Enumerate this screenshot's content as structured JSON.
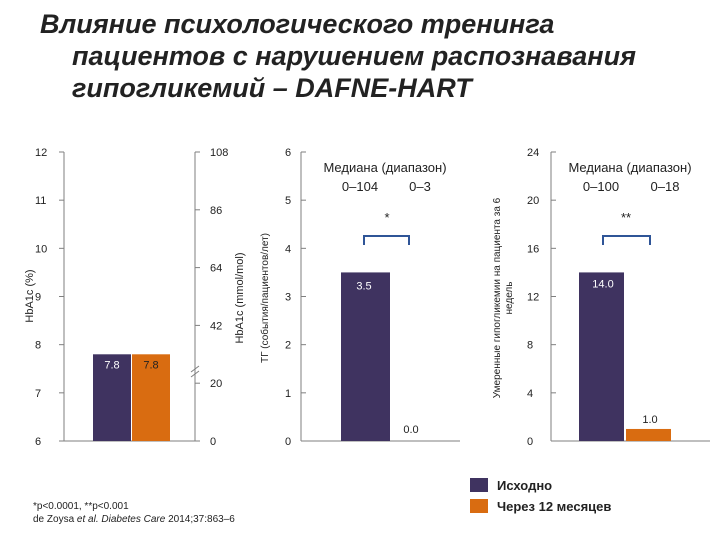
{
  "title": {
    "line1": "Влияние психологического тренинга",
    "line2": "пациентов с нарушением распознавания",
    "line3": "гипогликемий – DAFNE-HART"
  },
  "colors": {
    "baseline": "#3f3360",
    "month12": "#d96c11",
    "bracket": "#2f5597",
    "axis": "#7f7f7f"
  },
  "chart_data": [
    {
      "type": "bar",
      "left_axis": {
        "label": "HbA1c (%)",
        "ticks": [
          "6",
          "7",
          "8",
          "9",
          "10",
          "11",
          "12"
        ],
        "ylim": [
          6,
          12
        ]
      },
      "right_axis": {
        "label": "HbA1c (mmol/mol)",
        "ticks": [
          "0",
          "20",
          "42",
          "64",
          "86",
          "108"
        ]
      },
      "series": [
        {
          "name": "Исходно",
          "values": [
            7.8
          ],
          "label": "7.8"
        },
        {
          "name": "Через 12 месяцев",
          "values": [
            7.8
          ],
          "label": "7.8"
        }
      ]
    },
    {
      "type": "bar",
      "axis": {
        "label": "ТГ (события/пациентов/лет)",
        "ticks": [
          "0",
          "1",
          "2",
          "3",
          "4",
          "5",
          "6"
        ],
        "ylim": [
          0,
          6
        ]
      },
      "annotation": {
        "line1": "Медиана  (диапазон)",
        "line2a": "0–104",
        "line2b": "0–3"
      },
      "significance": "*",
      "series": [
        {
          "name": "Исходно",
          "values": [
            3.5
          ],
          "label": "3.5"
        },
        {
          "name": "Через 12 месяцев",
          "values": [
            0.0
          ],
          "label": "0.0"
        }
      ]
    },
    {
      "type": "bar",
      "axis": {
        "label": "Умеренные гипогликемии на пациента за 6 недель",
        "ticks": [
          "0",
          "4",
          "8",
          "12",
          "16",
          "20",
          "24"
        ],
        "ylim": [
          0,
          24
        ]
      },
      "annotation": {
        "line1": "Медиана  (диапазон)",
        "line2a": "0–100",
        "line2b": "0–18"
      },
      "significance": "**",
      "series": [
        {
          "name": "Исходно",
          "values": [
            14.0
          ],
          "label": "14.0"
        },
        {
          "name": "Через 12 месяцев",
          "values": [
            1.0
          ],
          "label": "1.0"
        }
      ]
    }
  ],
  "legend": {
    "items": [
      {
        "name": "Исходно",
        "color": "#3f3360"
      },
      {
        "name": "Через 12 месяцев",
        "color": "#d96c11"
      }
    ]
  },
  "footnote": {
    "line1": "*p<0.0001, **p<0.001",
    "authors": "de Zoysa ",
    "etal": "et al. Diabetes Care",
    "citation": " 2014;37:863–6"
  }
}
